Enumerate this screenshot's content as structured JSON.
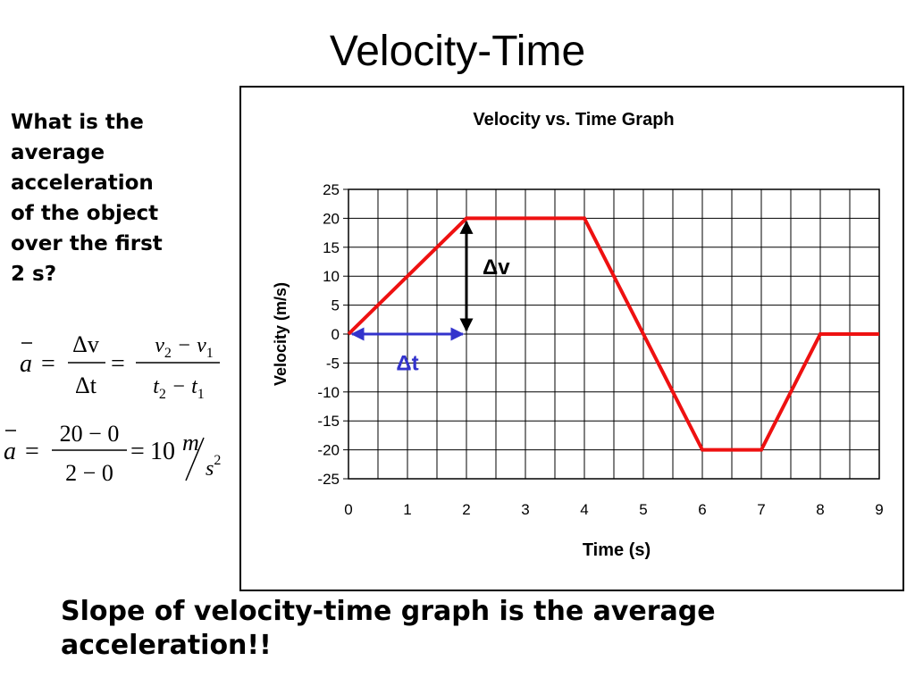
{
  "slide": {
    "title": "Velocity-Time",
    "question_lines": [
      "What is the",
      "average",
      "acceleration",
      "of the object",
      "over the first",
      "2 s?"
    ],
    "footer_lines": [
      "Slope of velocity-time graph is the average",
      "acceleration!!"
    ]
  },
  "formulas": {
    "line1": {
      "lhs": "a",
      "eq": "=",
      "num1": "Δv",
      "den1": "Δt",
      "num2": "v2 − v1",
      "den2": "t2 − t1"
    },
    "line2": {
      "lhs": "a",
      "eq": "=",
      "num": "20 − 0",
      "den": "2 − 0",
      "result": "10",
      "unit_num": "m",
      "unit_den": "s2"
    }
  },
  "annotations": {
    "dv_label": "Δv",
    "dt_label": "Δt",
    "dv_color": "#000000",
    "dt_color": "#3333cc"
  },
  "chart_data": {
    "type": "line",
    "title": "Velocity vs. Time Graph",
    "xlabel": "Time (s)",
    "ylabel": "Velocity (m/s)",
    "xlim": [
      0,
      9
    ],
    "ylim": [
      -25,
      25
    ],
    "x_ticks": [
      0,
      1,
      2,
      3,
      4,
      5,
      6,
      7,
      8,
      9
    ],
    "y_ticks": [
      25,
      20,
      15,
      10,
      5,
      0,
      -5,
      -10,
      -15,
      -20,
      -25
    ],
    "grid": true,
    "series": [
      {
        "color": "#ee1111",
        "x": [
          0,
          2,
          4,
          5,
          6,
          7,
          8,
          9
        ],
        "y": [
          0,
          20,
          20,
          0,
          -20,
          -20,
          0,
          0
        ]
      }
    ]
  }
}
